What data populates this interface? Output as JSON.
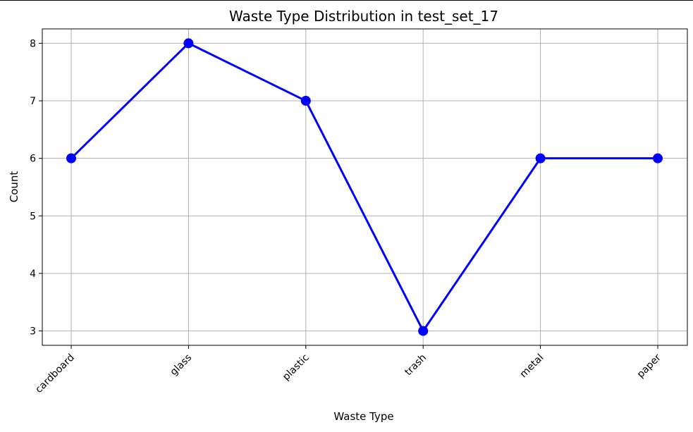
{
  "chart_data": {
    "type": "line",
    "title": "Waste Type Distribution in test_set_17",
    "xlabel": "Waste Type",
    "ylabel": "Count",
    "categories": [
      "cardboard",
      "glass",
      "plastic",
      "trash",
      "metal",
      "paper"
    ],
    "values": [
      6,
      8,
      7,
      3,
      6,
      6
    ],
    "yticks": [
      3,
      4,
      5,
      6,
      7,
      8
    ],
    "ylim": [
      2.75,
      8.25
    ],
    "grid": true,
    "legend": "none",
    "line_color": "#0000ff",
    "marker": "circle"
  }
}
